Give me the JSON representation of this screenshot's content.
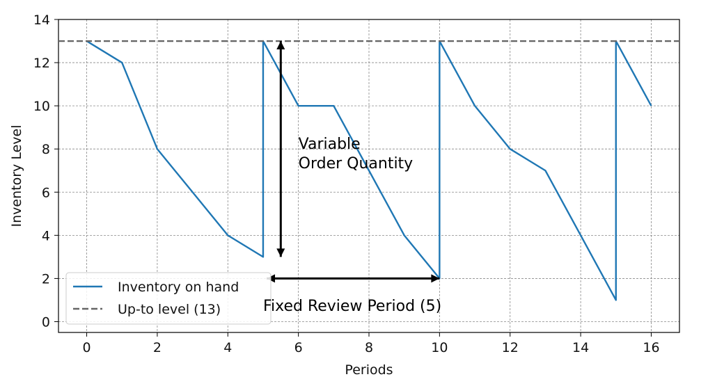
{
  "chart_data": {
    "type": "line",
    "xlabel": "Periods",
    "ylabel": "Inventory Level",
    "xlim": [
      -0.8,
      16.8
    ],
    "ylim": [
      -0.5,
      14
    ],
    "xticks": [
      0,
      2,
      4,
      6,
      8,
      10,
      12,
      14,
      16
    ],
    "yticks": [
      0,
      2,
      4,
      6,
      8,
      10,
      12,
      14
    ],
    "grid": true,
    "legend_position": "lower-left",
    "series": [
      {
        "name": "Inventory on hand",
        "style": "solid",
        "color": "#1f77b4",
        "points": [
          [
            0,
            13
          ],
          [
            1,
            12
          ],
          [
            2,
            8
          ],
          [
            3,
            6
          ],
          [
            4,
            4
          ],
          [
            5,
            3
          ],
          [
            5,
            13
          ],
          [
            6,
            10
          ],
          [
            7,
            10
          ],
          [
            8,
            7
          ],
          [
            9,
            4
          ],
          [
            10,
            2
          ],
          [
            10,
            13
          ],
          [
            11,
            10
          ],
          [
            12,
            8
          ],
          [
            13,
            7
          ],
          [
            14,
            4
          ],
          [
            15,
            1
          ],
          [
            15,
            13
          ],
          [
            16,
            10
          ]
        ]
      },
      {
        "name": "Up-to level (13)",
        "style": "dashed",
        "color": "#666666",
        "y": 13
      }
    ],
    "annotations": [
      {
        "lines": [
          "Variable",
          "Order Quantity"
        ],
        "anchor": [
          6,
          8
        ]
      },
      {
        "lines": [
          "Fixed Review Period (5)"
        ],
        "anchor": [
          5,
          0.5
        ]
      }
    ],
    "arrows": [
      {
        "from": [
          5.5,
          3
        ],
        "to": [
          5.5,
          13
        ]
      },
      {
        "from": [
          5.1,
          2
        ],
        "to": [
          10,
          2
        ]
      }
    ]
  }
}
